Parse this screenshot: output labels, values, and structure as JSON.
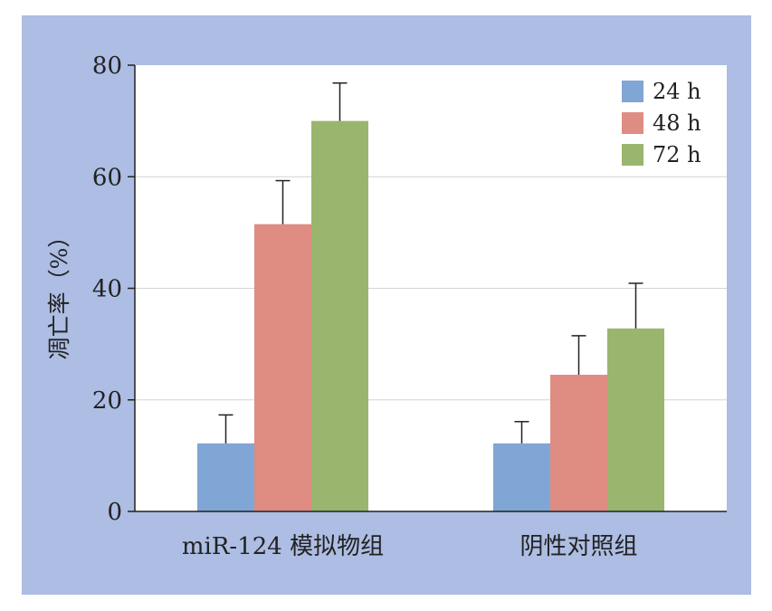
{
  "chart_data": {
    "type": "bar",
    "title": "",
    "xlabel": "",
    "ylabel": "凋亡率（%）",
    "ylim": [
      0,
      80
    ],
    "yticks": [
      0,
      20,
      40,
      60,
      80
    ],
    "grid": true,
    "legend_position": "top-right",
    "categories": [
      "miR-124 模拟物组",
      "阴性对照组"
    ],
    "series": [
      {
        "name": "24 h",
        "color": "#7fa6d4",
        "values": [
          12.2,
          12.2
        ],
        "errors": [
          5.1,
          3.9
        ]
      },
      {
        "name": "48 h",
        "color": "#df8c82",
        "values": [
          51.5,
          24.5
        ],
        "errors": [
          7.8,
          7.0
        ]
      },
      {
        "name": "72 h",
        "color": "#9ab56e",
        "values": [
          70.0,
          32.8
        ],
        "errors": [
          6.8,
          8.1
        ]
      }
    ]
  }
}
